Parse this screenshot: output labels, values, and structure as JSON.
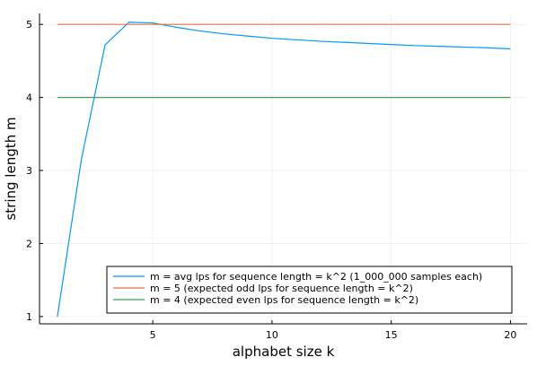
{
  "chart_data": {
    "type": "line",
    "xlabel": "alphabet size k",
    "ylabel": "string length m",
    "xlim": [
      0.25,
      20.7
    ],
    "ylim": [
      0.9,
      5.15
    ],
    "xticks": [
      5,
      10,
      15,
      20
    ],
    "yticks": [
      1,
      2,
      3,
      4,
      5
    ],
    "grid": true,
    "legend_position": "bottom-right",
    "series": [
      {
        "name": "m = avg lps for sequence length = k^2 (1_000_000 samples each)",
        "color": "#009AFA",
        "x": [
          1,
          2,
          3,
          4,
          5,
          6,
          7,
          8,
          9,
          10,
          11,
          12,
          13,
          14,
          15,
          16,
          17,
          18,
          19,
          20
        ],
        "y": [
          1.0,
          3.14,
          4.72,
          5.03,
          5.02,
          4.96,
          4.91,
          4.87,
          4.84,
          4.81,
          4.79,
          4.77,
          4.755,
          4.74,
          4.725,
          4.71,
          4.7,
          4.69,
          4.68,
          4.665
        ]
      },
      {
        "name": "m = 5 (expected odd lps for sequence length = k^2)",
        "color": "#E36F47",
        "x": [
          1,
          20
        ],
        "y": [
          5,
          5
        ]
      },
      {
        "name": "m = 4 (expected even lps for sequence length = k^2)",
        "color": "#3EA44E",
        "x": [
          1,
          20
        ],
        "y": [
          4,
          4
        ]
      }
    ]
  }
}
